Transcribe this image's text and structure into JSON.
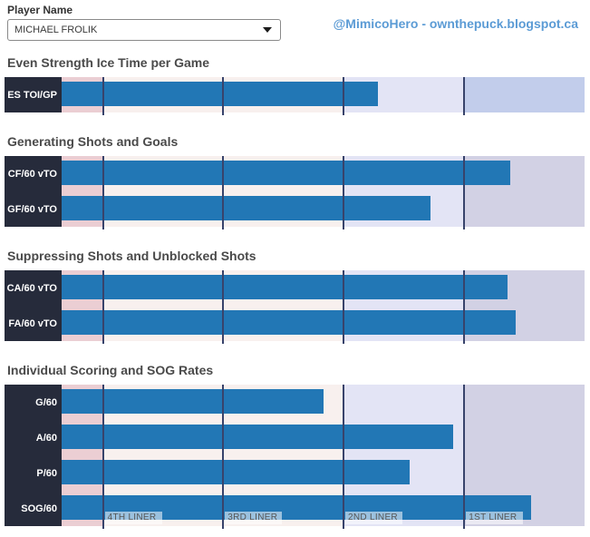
{
  "header": {
    "player_label": "Player Name",
    "player_value": "MICHAEL FROLIK",
    "credit": "@MimicoHero - ownthepuck.blogspot.ca"
  },
  "colors": {
    "bar": "#2277b5",
    "label-box": "#262b3b",
    "gridline": "#38436b",
    "zone-pink": "#ebced3",
    "zone-pale": "#f8f0ee",
    "zone-lavender": "#e3e4f5",
    "zone-right-default": "#d2d1e4",
    "zone-right-first": "#c2cdeb",
    "title": "#4a4a4a",
    "credit": "#5b9bd5"
  },
  "axis": {
    "note": "horizontal axis = player deployment tier, no numeric scale shown; positions are percent of chart width",
    "tick_labels": [
      "4TH LINER",
      "3RD LINER",
      "2ND LINER",
      "1ST LINER"
    ],
    "tick_pos_pct": [
      7.9,
      30.9,
      53.9,
      77.0
    ],
    "zone_bounds_pct": [
      0,
      7.9,
      53.9,
      77.0,
      100
    ],
    "zone_colors": [
      "zone-pink",
      "zone-pale",
      "zone-lavender"
    ]
  },
  "chart_data": [
    {
      "type": "bar",
      "orientation": "horizontal",
      "title": "Even Strength Ice Time per Game",
      "categories": [
        "ES TOI/GP"
      ],
      "values": [
        60.5
      ],
      "units": "percent of axis width (estimated from pixels)",
      "right_zone_color": "zone-right-first",
      "tier_labels_visible": false
    },
    {
      "type": "bar",
      "orientation": "horizontal",
      "title": "Generating Shots and Goals",
      "categories": [
        "CF/60 vTO",
        "GF/60 vTO"
      ],
      "values": [
        85.8,
        70.5
      ],
      "units": "percent of axis width (estimated from pixels)",
      "right_zone_color": "zone-right-default",
      "tier_labels_visible": false
    },
    {
      "type": "bar",
      "orientation": "horizontal",
      "title": "Suppressing Shots and Unblocked Shots",
      "categories": [
        "CA/60 vTO",
        "FA/60 vTO"
      ],
      "values": [
        85.3,
        86.8
      ],
      "units": "percent of axis width (estimated from pixels)",
      "right_zone_color": "zone-right-default",
      "tier_labels_visible": false
    },
    {
      "type": "bar",
      "orientation": "horizontal",
      "title": "Individual Scoring and SOG Rates",
      "categories": [
        "G/60",
        "A/60",
        "P/60",
        "SOG/60"
      ],
      "values": [
        50.1,
        74.9,
        66.6,
        89.8
      ],
      "units": "percent of axis width (estimated from pixels)",
      "right_zone_color": "zone-right-default",
      "tier_labels_visible": true
    }
  ]
}
